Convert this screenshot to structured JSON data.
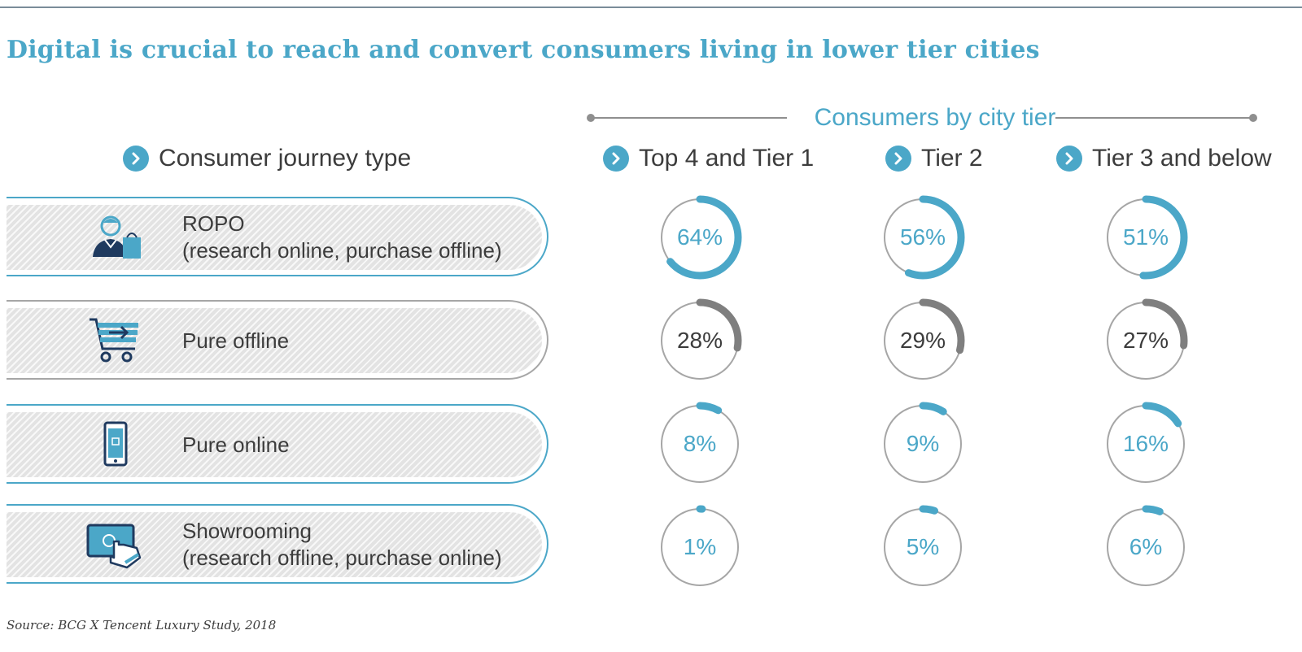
{
  "title": "Digital is crucial to reach and convert consumers living in lower tier cities",
  "group_header": "Consumers by city tier",
  "row_header": "Consumer journey type",
  "source": "Source: BCG X Tencent Luxury Study, 2018",
  "colors": {
    "accent": "#4ba7c8",
    "offline": "#7f7f7f",
    "ring": "#a6a6a6",
    "text": "#3c3c3c",
    "navy": "#1f3a5f"
  },
  "rows": [
    {
      "label_line1": "ROPO",
      "label_line2": "(research online, purchase offline)",
      "icon": "person-with-shopping-bag-icon"
    },
    {
      "label_line1": "Pure offline",
      "label_line2": "",
      "icon": "shopping-cart-icon"
    },
    {
      "label_line1": "Pure online",
      "label_line2": "",
      "icon": "smartphone-cart-icon"
    },
    {
      "label_line1": "Showrooming",
      "label_line2": "(research offline, purchase online)",
      "icon": "touchscreen-hand-icon"
    }
  ],
  "chart_data": {
    "type": "table",
    "title": "Digital is crucial to reach and convert consumers living in lower tier cities",
    "group_label": "Consumers by city tier",
    "row_header": "Consumer journey type",
    "columns": [
      "Top 4 and Tier 1",
      "Tier 2",
      "Tier 3 and below"
    ],
    "rows": [
      "ROPO (research online, purchase offline)",
      "Pure offline",
      "Pure online",
      "Showrooming (research offline, purchase online)"
    ],
    "unit": "%",
    "values": [
      [
        64,
        56,
        51
      ],
      [
        28,
        29,
        27
      ],
      [
        8,
        9,
        16
      ],
      [
        1,
        5,
        6
      ]
    ],
    "labels": [
      [
        "64%",
        "56%",
        "51%"
      ],
      [
        "28%",
        "29%",
        "27%"
      ],
      [
        "8%",
        "9%",
        "16%"
      ],
      [
        "1%",
        "5%",
        "6%"
      ]
    ],
    "series_color": [
      "#4ba7c8",
      "#7f7f7f",
      "#4ba7c8",
      "#4ba7c8"
    ]
  }
}
